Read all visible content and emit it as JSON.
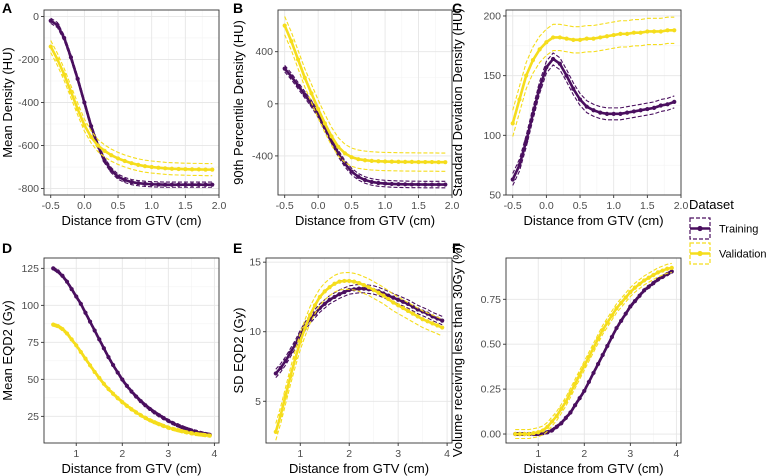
{
  "colors": {
    "training": "#4a0f5f",
    "validation": "#f5dd1c"
  },
  "legend": {
    "title": "Dataset",
    "entries": [
      {
        "name": "Training",
        "color": "#4a0f5f"
      },
      {
        "name": "Validation",
        "color": "#f5dd1c"
      }
    ]
  },
  "chart_data": [
    {
      "tag": "A",
      "type": "line",
      "xlabel": "Distance from GTV (cm)",
      "ylabel": "Mean Density (HU)",
      "xlim": [
        -0.6,
        2.0
      ],
      "ylim": [
        -830,
        30
      ],
      "xticks": [
        -0.5,
        0.0,
        0.5,
        1.0,
        1.5,
        2.0
      ],
      "xtick_labels": [
        "-0.5",
        "0.0",
        "0.5",
        "1.0",
        "1.5",
        "2.0"
      ],
      "yticks": [
        -800,
        -600,
        -400,
        -200,
        0
      ],
      "ytick_labels": [
        "-800",
        "-600",
        "-400",
        "-200",
        "0"
      ],
      "x": [
        -0.5,
        -0.4,
        -0.3,
        -0.2,
        -0.1,
        0.0,
        0.1,
        0.2,
        0.3,
        0.4,
        0.5,
        0.6,
        0.7,
        0.8,
        0.9,
        1.0,
        1.1,
        1.2,
        1.3,
        1.4,
        1.5,
        1.6,
        1.7,
        1.8,
        1.9
      ],
      "series": [
        {
          "name": "Training",
          "values": [
            -20,
            -40,
            -100,
            -190,
            -290,
            -400,
            -510,
            -600,
            -670,
            -715,
            -745,
            -760,
            -770,
            -775,
            -778,
            -780,
            -781,
            -782,
            -782,
            -782,
            -782,
            -782,
            -782,
            -782,
            -782
          ],
          "band": 12
        },
        {
          "name": "Validation",
          "values": [
            -140,
            -200,
            -270,
            -350,
            -430,
            -505,
            -560,
            -600,
            -625,
            -645,
            -660,
            -672,
            -682,
            -690,
            -696,
            -700,
            -703,
            -706,
            -708,
            -709,
            -710,
            -711,
            -711,
            -712,
            -712
          ],
          "band": 28
        }
      ]
    },
    {
      "tag": "B",
      "type": "line",
      "xlabel": "Distance from GTV (cm)",
      "ylabel": "90th Percentile Density (HU)",
      "xlim": [
        -0.6,
        2.0
      ],
      "ylim": [
        -700,
        720
      ],
      "xticks": [
        -0.5,
        0.0,
        0.5,
        1.0,
        1.5,
        2.0
      ],
      "xtick_labels": [
        "-0.5",
        "0.0",
        "0.5",
        "1.0",
        "1.5",
        "2.0"
      ],
      "yticks": [
        -400,
        0,
        400
      ],
      "ytick_labels": [
        "-400",
        "0",
        "400"
      ],
      "x": [
        -0.5,
        -0.4,
        -0.3,
        -0.2,
        -0.1,
        0.0,
        0.1,
        0.2,
        0.3,
        0.4,
        0.5,
        0.6,
        0.7,
        0.8,
        0.9,
        1.0,
        1.1,
        1.2,
        1.3,
        1.4,
        1.5,
        1.6,
        1.7,
        1.8,
        1.9
      ],
      "series": [
        {
          "name": "Training",
          "values": [
            270,
            210,
            140,
            70,
            0,
            -80,
            -180,
            -280,
            -380,
            -460,
            -520,
            -560,
            -585,
            -600,
            -608,
            -612,
            -615,
            -617,
            -618,
            -619,
            -619,
            -620,
            -620,
            -620,
            -620
          ],
          "band": 25
        },
        {
          "name": "Validation",
          "values": [
            600,
            480,
            340,
            200,
            80,
            -40,
            -150,
            -250,
            -330,
            -380,
            -410,
            -425,
            -433,
            -438,
            -441,
            -443,
            -444,
            -445,
            -446,
            -446,
            -447,
            -447,
            -447,
            -448,
            -448
          ],
          "band": 70
        }
      ]
    },
    {
      "tag": "C",
      "type": "line",
      "xlabel": "Distance from GTV (cm)",
      "ylabel": "Standard Deviation Density (HU)",
      "xlim": [
        -0.6,
        2.0
      ],
      "ylim": [
        50,
        205
      ],
      "xticks": [
        -0.5,
        0.0,
        0.5,
        1.0,
        1.5,
        2.0
      ],
      "xtick_labels": [
        "-0.5",
        "0.0",
        "0.5",
        "1.0",
        "1.5",
        "2.0"
      ],
      "yticks": [
        50,
        100,
        150,
        200
      ],
      "ytick_labels": [
        "50",
        "100",
        "150",
        "200"
      ],
      "x": [
        -0.5,
        -0.4,
        -0.3,
        -0.2,
        -0.1,
        0.0,
        0.1,
        0.2,
        0.3,
        0.4,
        0.5,
        0.6,
        0.7,
        0.8,
        0.9,
        1.0,
        1.1,
        1.2,
        1.3,
        1.4,
        1.5,
        1.6,
        1.7,
        1.8,
        1.9
      ],
      "series": [
        {
          "name": "Training",
          "values": [
            63,
            75,
            95,
            118,
            140,
            157,
            164,
            160,
            150,
            139,
            130,
            124,
            121,
            119,
            118,
            118,
            118,
            119,
            120,
            121,
            122,
            123,
            125,
            126,
            128
          ],
          "band": 5
        },
        {
          "name": "Validation",
          "values": [
            110,
            130,
            150,
            163,
            172,
            178,
            182,
            182,
            181,
            180,
            180,
            181,
            181,
            182,
            183,
            184,
            185,
            185,
            186,
            186,
            187,
            187,
            187,
            188,
            188
          ],
          "band": 11
        }
      ]
    },
    {
      "tag": "D",
      "type": "line",
      "xlabel": "Distance from GTV (cm)",
      "ylabel": "Mean EQD2 (Gy)",
      "xlim": [
        0.3,
        4.1
      ],
      "ylim": [
        7,
        132
      ],
      "xticks": [
        1,
        2,
        3,
        4
      ],
      "xtick_labels": [
        "1",
        "2",
        "3",
        "4"
      ],
      "yticks": [
        25,
        50,
        75,
        100,
        125
      ],
      "ytick_labels": [
        "25",
        "50",
        "75",
        "100",
        "125"
      ],
      "x": [
        0.5,
        0.6,
        0.7,
        0.8,
        0.9,
        1.0,
        1.1,
        1.2,
        1.3,
        1.4,
        1.5,
        1.6,
        1.7,
        1.8,
        1.9,
        2.0,
        2.1,
        2.2,
        2.3,
        2.4,
        2.5,
        2.6,
        2.7,
        2.8,
        2.9,
        3.0,
        3.1,
        3.2,
        3.3,
        3.4,
        3.5,
        3.6,
        3.7,
        3.8,
        3.9
      ],
      "series": [
        {
          "name": "Training",
          "values": [
            125,
            123,
            120,
            116,
            111,
            106,
            101,
            95,
            89,
            83,
            77,
            71,
            65,
            59.7,
            54.6,
            49.9,
            45.6,
            41.8,
            38.4,
            35.3,
            32.5,
            30,
            27.7,
            25.7,
            23.8,
            22,
            20.4,
            19,
            17.7,
            16.5,
            15.5,
            14.6,
            13.8,
            13.1,
            12.5
          ],
          "band": 1
        },
        {
          "name": "Validation",
          "values": [
            87,
            86,
            84,
            81,
            77,
            73,
            68.5,
            64,
            59.5,
            55,
            51,
            47,
            43.5,
            40.3,
            37.3,
            34.6,
            32.1,
            29.8,
            27.7,
            25.8,
            24,
            22.4,
            21,
            19.7,
            18.5,
            17.4,
            16.5,
            15.7,
            14.9,
            14.2,
            13.6,
            13.1,
            12.7,
            12.3,
            12
          ],
          "band": 1
        }
      ]
    },
    {
      "tag": "E",
      "type": "line",
      "xlabel": "Distance from GTV (cm)",
      "ylabel": "SD EQD2 (Gy)",
      "xlim": [
        0.3,
        4.1
      ],
      "ylim": [
        2,
        15.3
      ],
      "xticks": [
        1,
        2,
        3,
        4
      ],
      "xtick_labels": [
        "1",
        "2",
        "3",
        "4"
      ],
      "yticks": [
        5,
        10,
        15
      ],
      "ytick_labels": [
        "5",
        "10",
        "15"
      ],
      "x": [
        0.5,
        0.6,
        0.7,
        0.8,
        0.9,
        1.0,
        1.1,
        1.2,
        1.3,
        1.4,
        1.5,
        1.6,
        1.7,
        1.8,
        1.9,
        2.0,
        2.1,
        2.2,
        2.3,
        2.4,
        2.5,
        2.6,
        2.7,
        2.8,
        2.9,
        3.0,
        3.1,
        3.2,
        3.3,
        3.4,
        3.5,
        3.6,
        3.7,
        3.8,
        3.9
      ],
      "series": [
        {
          "name": "Training",
          "values": [
            7,
            7.4,
            7.9,
            8.5,
            9.1,
            9.8,
            10.4,
            10.9,
            11.3,
            11.7,
            12,
            12.3,
            12.5,
            12.7,
            12.85,
            13,
            13.05,
            13.1,
            13.1,
            13.05,
            13,
            12.9,
            12.75,
            12.6,
            12.45,
            12.3,
            12.15,
            12,
            11.8,
            11.6,
            11.45,
            11.3,
            11.1,
            10.95,
            10.8
          ],
          "band": 0.3
        },
        {
          "name": "Validation",
          "values": [
            2.8,
            4,
            5.4,
            6.8,
            8.1,
            9.3,
            10.3,
            11.2,
            11.9,
            12.5,
            12.9,
            13.2,
            13.45,
            13.6,
            13.65,
            13.65,
            13.6,
            13.5,
            13.35,
            13.2,
            13,
            12.8,
            12.6,
            12.35,
            12.1,
            11.9,
            11.7,
            11.5,
            11.3,
            11.1,
            10.9,
            10.75,
            10.6,
            10.45,
            10.3
          ],
          "band": 0.6
        }
      ]
    },
    {
      "tag": "F",
      "type": "line",
      "xlabel": "Distance from GTV (cm)",
      "ylabel": "Volume receiving less than 30Gy (%)",
      "xlim": [
        0.3,
        4.1
      ],
      "ylim": [
        -0.05,
        0.98
      ],
      "xticks": [
        1,
        2,
        3,
        4
      ],
      "xtick_labels": [
        "1",
        "2",
        "3",
        "4"
      ],
      "yticks": [
        0.0,
        0.25,
        0.5,
        0.75
      ],
      "ytick_labels": [
        "0.00",
        "0.25",
        "0.50",
        "0.75"
      ],
      "x": [
        0.5,
        0.6,
        0.7,
        0.8,
        0.9,
        1.0,
        1.1,
        1.2,
        1.3,
        1.4,
        1.5,
        1.6,
        1.7,
        1.8,
        1.9,
        2.0,
        2.1,
        2.2,
        2.3,
        2.4,
        2.5,
        2.6,
        2.7,
        2.8,
        2.9,
        3.0,
        3.1,
        3.2,
        3.3,
        3.4,
        3.5,
        3.6,
        3.7,
        3.8,
        3.9
      ],
      "series": [
        {
          "name": "Training",
          "values": [
            0,
            0,
            0,
            0,
            0,
            0,
            0.005,
            0.01,
            0.02,
            0.04,
            0.06,
            0.09,
            0.12,
            0.16,
            0.2,
            0.24,
            0.29,
            0.34,
            0.39,
            0.44,
            0.49,
            0.54,
            0.59,
            0.63,
            0.67,
            0.71,
            0.74,
            0.77,
            0.8,
            0.82,
            0.84,
            0.86,
            0.875,
            0.89,
            0.905
          ],
          "band": 0.008
        },
        {
          "name": "Validation",
          "values": [
            0,
            0,
            0,
            0,
            0.005,
            0.01,
            0.02,
            0.04,
            0.07,
            0.1,
            0.14,
            0.18,
            0.23,
            0.28,
            0.33,
            0.38,
            0.43,
            0.48,
            0.53,
            0.58,
            0.62,
            0.66,
            0.7,
            0.73,
            0.76,
            0.79,
            0.815,
            0.835,
            0.855,
            0.87,
            0.885,
            0.9,
            0.91,
            0.92,
            0.925
          ],
          "band": 0.025
        }
      ]
    }
  ]
}
